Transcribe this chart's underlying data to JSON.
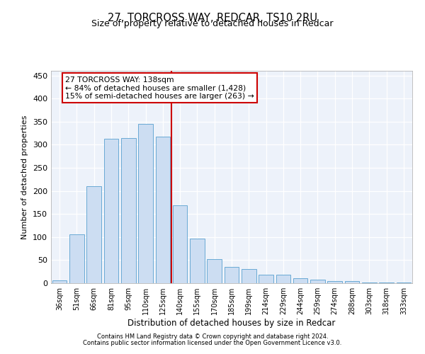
{
  "title": "27, TORCROSS WAY, REDCAR, TS10 2RU",
  "subtitle": "Size of property relative to detached houses in Redcar",
  "xlabel": "Distribution of detached houses by size in Redcar",
  "ylabel": "Number of detached properties",
  "categories": [
    "36sqm",
    "51sqm",
    "66sqm",
    "81sqm",
    "95sqm",
    "110sqm",
    "125sqm",
    "140sqm",
    "155sqm",
    "170sqm",
    "185sqm",
    "199sqm",
    "214sqm",
    "229sqm",
    "244sqm",
    "259sqm",
    "274sqm",
    "288sqm",
    "303sqm",
    "318sqm",
    "333sqm"
  ],
  "values": [
    6,
    106,
    210,
    313,
    314,
    345,
    317,
    168,
    97,
    52,
    36,
    30,
    18,
    18,
    11,
    8,
    4,
    4,
    2,
    1,
    1
  ],
  "bar_color": "#ccddf2",
  "bar_edge_color": "#6aaad4",
  "vline_color": "#cc0000",
  "annotation_line1": "27 TORCROSS WAY: 138sqm",
  "annotation_line2": "← 84% of detached houses are smaller (1,428)",
  "annotation_line3": "15% of semi-detached houses are larger (263) →",
  "annotation_box_color": "#cc0000",
  "ylim": [
    0,
    460
  ],
  "yticks": [
    0,
    50,
    100,
    150,
    200,
    250,
    300,
    350,
    400,
    450
  ],
  "background_color": "#edf2fa",
  "footer_line1": "Contains HM Land Registry data © Crown copyright and database right 2024.",
  "footer_line2": "Contains public sector information licensed under the Open Government Licence v3.0.",
  "title_fontsize": 10.5,
  "subtitle_fontsize": 9
}
